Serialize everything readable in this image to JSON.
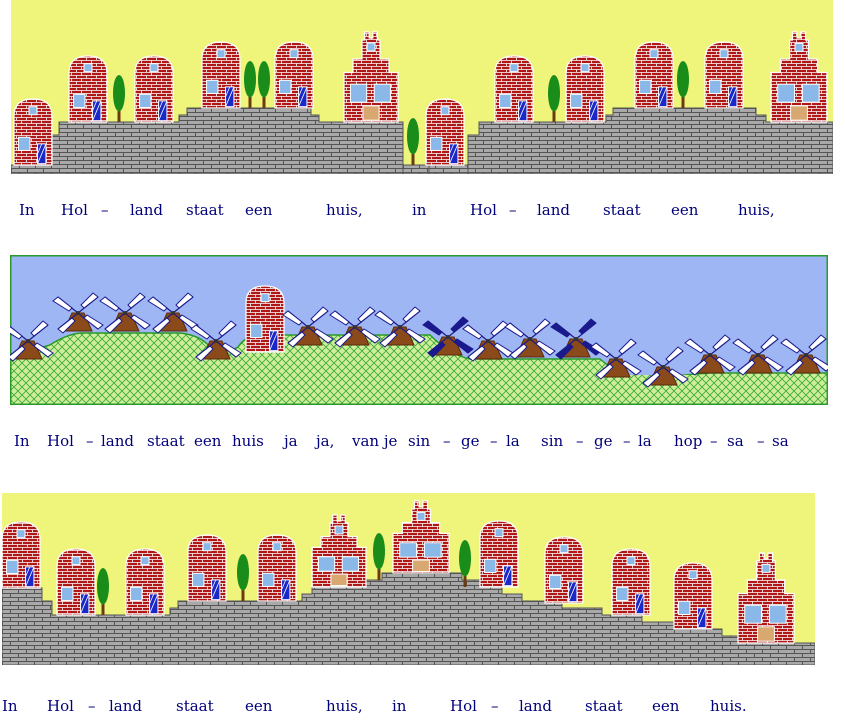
{
  "scene": {
    "colors": {
      "sky_yellow": "#eef57a",
      "sky_blue": "#9fb6f5",
      "wall": "#a9a9a9",
      "wall_line": "#555555",
      "brick": "#b01818",
      "window": "#8ab8e8",
      "door": "#1a28c8",
      "tree": "#1a8c1a",
      "trunk": "#6b3a10",
      "meadow": "#cfee9a",
      "mill_body": "#8b4a1a",
      "mill_sail_dark": "#1a1a8c",
      "lyric_text": "#00007a"
    },
    "panel1": {
      "name": "houses-on-dike-panel-1"
    },
    "panel2": {
      "name": "windmills-meadow-panel"
    },
    "panel3": {
      "name": "houses-on-hill-panel-3"
    }
  },
  "lyrics": {
    "line1": [
      "In",
      "Hol",
      "–",
      "land",
      "staat",
      "een",
      "huis,",
      "in",
      "Hol",
      "–",
      "land",
      "staat",
      "een",
      "huis,"
    ],
    "line2": [
      "In",
      "Hol",
      "–",
      "land",
      "staat",
      "een",
      "huis",
      "ja",
      "ja,",
      "van je",
      "sin",
      "–",
      "ge",
      "–",
      "la",
      "sin",
      "–",
      "ge",
      "–",
      "la",
      "hop",
      "–",
      "sa",
      "–",
      "sa"
    ],
    "line3": [
      "In",
      "Hol",
      "–",
      "land",
      "staat",
      "een",
      "huis,",
      "in",
      "Hol",
      "–",
      "land",
      "staat",
      "een",
      "huis."
    ]
  }
}
